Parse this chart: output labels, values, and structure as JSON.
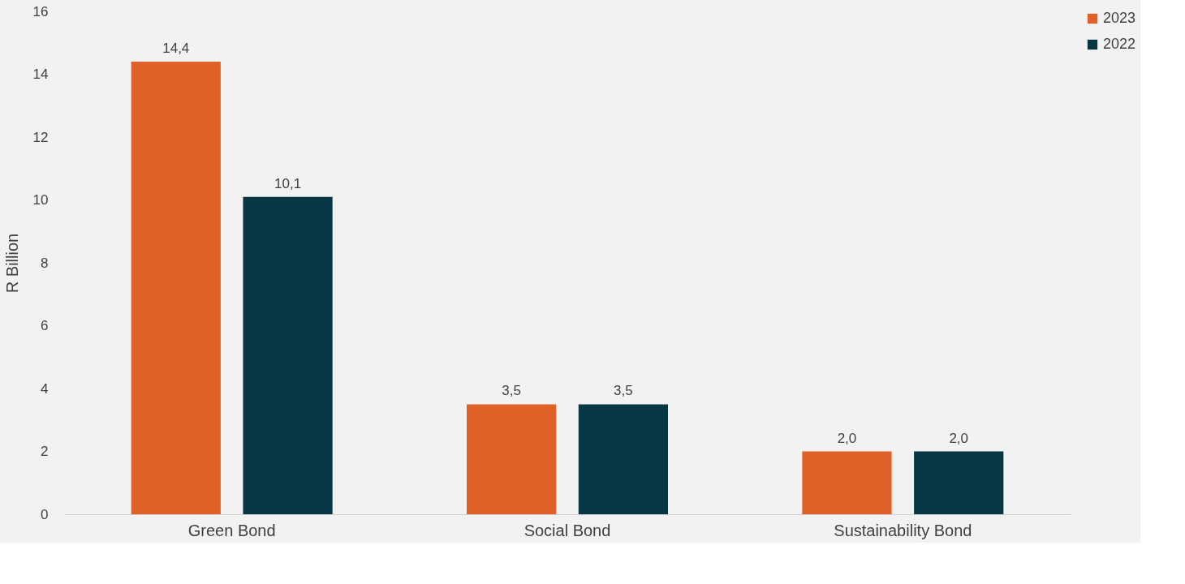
{
  "chart_data": {
    "type": "bar",
    "ylabel": "R Billion",
    "categories": [
      "Green Bond",
      "Social Bond",
      "Sustainability Bond"
    ],
    "series": [
      {
        "name": "2023",
        "color": "#df6128",
        "values": [
          14.4,
          3.5,
          2.0
        ],
        "value_labels": [
          "14,4",
          "3,5",
          "2,0"
        ]
      },
      {
        "name": "2022",
        "color": "#083744",
        "values": [
          10.1,
          3.5,
          2.0
        ],
        "value_labels": [
          "10,1",
          "3,5",
          "2,0"
        ]
      }
    ],
    "ylim": [
      0,
      16
    ],
    "yticks": [
      0,
      2,
      4,
      6,
      8,
      10,
      12,
      14,
      16
    ],
    "grid": false,
    "legend": "right"
  }
}
